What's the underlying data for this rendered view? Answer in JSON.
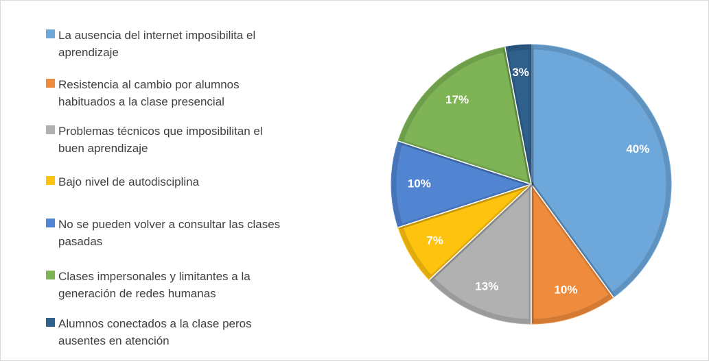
{
  "chart_data": {
    "type": "pie",
    "categories": [
      "La ausencia del internet imposibilita el aprendizaje",
      "Resistencia al cambio por alumnos habituados a la clase presencial",
      "Problemas técnicos que imposibilitan el buen aprendizaje",
      "Bajo nivel de autodisciplina",
      "No se pueden volver a consultar las clases pasadas",
      "Clases impersonales y limitantes a la generación de redes humanas",
      "Alumnos conectados a la clase peros ausentes en atención"
    ],
    "values": [
      40,
      10,
      13,
      7,
      10,
      17,
      3
    ],
    "value_labels": [
      "40%",
      "10%",
      "13%",
      "7%",
      "10%",
      "17%",
      "3%"
    ],
    "colors": [
      "#6ea7da",
      "#ef8b3c",
      "#b1b1b1",
      "#fec30f",
      "#5184d1",
      "#7eb356",
      "#2f5f8b"
    ],
    "legend": "left"
  }
}
